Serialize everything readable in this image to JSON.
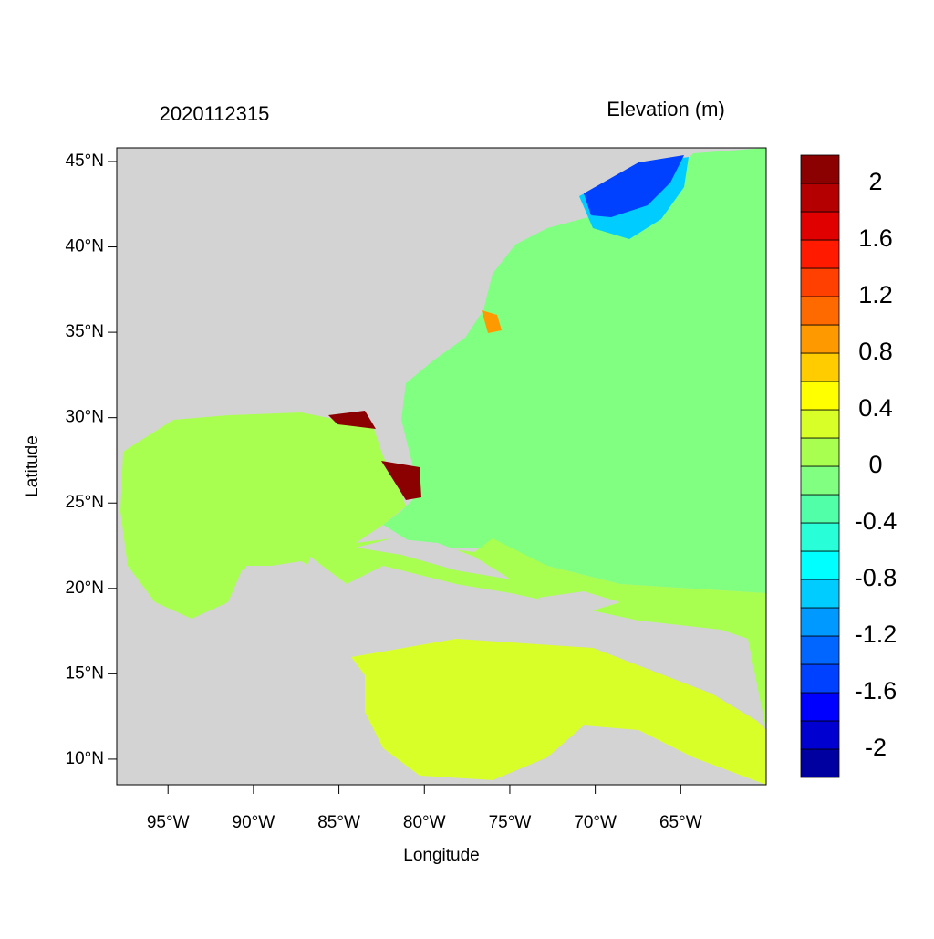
{
  "chart_data": {
    "type": "map",
    "title": "2020112315",
    "subtitle": "Elevation (m)",
    "x_label": "Longitude",
    "y_label": "Latitude",
    "xlim": [
      -98,
      -60
    ],
    "ylim": [
      8.5,
      45.8
    ],
    "xticks": [
      {
        "value": -95,
        "label": "95°W"
      },
      {
        "value": -90,
        "label": "90°W"
      },
      {
        "value": -85,
        "label": "85°W"
      },
      {
        "value": -80,
        "label": "80°W"
      },
      {
        "value": -75,
        "label": "75°W"
      },
      {
        "value": -70,
        "label": "70°W"
      },
      {
        "value": -65,
        "label": "65°W"
      }
    ],
    "yticks": [
      {
        "value": 10,
        "label": "10°N"
      },
      {
        "value": 15,
        "label": "15°N"
      },
      {
        "value": 20,
        "label": "20°N"
      },
      {
        "value": 25,
        "label": "25°N"
      },
      {
        "value": 30,
        "label": "30°N"
      },
      {
        "value": 35,
        "label": "35°N"
      },
      {
        "value": 40,
        "label": "40°N"
      },
      {
        "value": 45,
        "label": "45°N"
      }
    ],
    "colorbar": {
      "lim": [
        -2.2,
        2.2
      ],
      "ticks": [
        -2,
        -1.6,
        -1.2,
        -0.8,
        -0.4,
        0,
        0.4,
        0.8,
        1.2,
        1.6,
        2
      ],
      "colors": [
        "#0000a0",
        "#0000d0",
        "#0000ff",
        "#0040ff",
        "#0066ff",
        "#0099ff",
        "#00ccff",
        "#00ffff",
        "#28ffd8",
        "#50ffa8",
        "#80ff80",
        "#a8ff50",
        "#d8ff28",
        "#ffff00",
        "#ffcc00",
        "#ff9900",
        "#ff6a00",
        "#ff4000",
        "#ff1a00",
        "#e00000",
        "#b40000",
        "#8b0000"
      ]
    }
  }
}
